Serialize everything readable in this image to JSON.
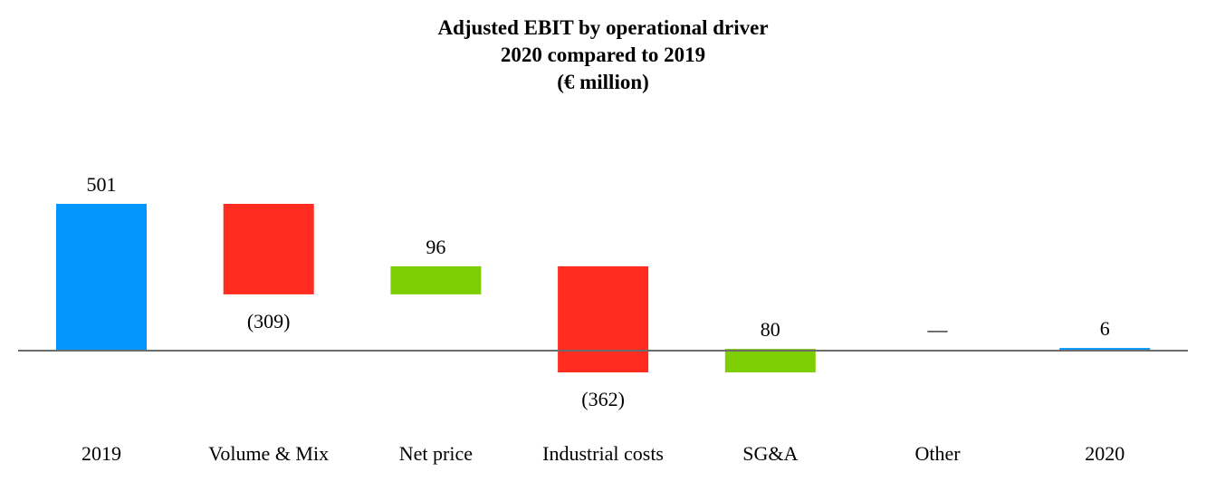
{
  "chart_data": {
    "type": "bar",
    "subtype": "waterfall",
    "title": [
      "Adjusted EBIT by operational driver",
      "2020 compared to 2019",
      "(€ million)"
    ],
    "xlabel": "",
    "ylabel": "",
    "categories": [
      "2019",
      "Volume & Mix",
      "Net price",
      "Industrial costs",
      "SG&A",
      "Other",
      "2020"
    ],
    "values": [
      501,
      -309,
      96,
      -362,
      80,
      0,
      6
    ],
    "bar_kinds": [
      "total",
      "delta",
      "delta",
      "delta",
      "delta",
      "delta",
      "total"
    ],
    "value_labels": [
      "501",
      "(309)",
      "96",
      "(362)",
      "80",
      "—",
      "6"
    ],
    "ylim": [
      -90,
      530
    ],
    "grid": false,
    "legend": false,
    "colors": {
      "total": "#0396FF",
      "increase": "#7ECE06",
      "decrease": "#FF2C1F",
      "baseline": "#6b6b6b"
    }
  }
}
